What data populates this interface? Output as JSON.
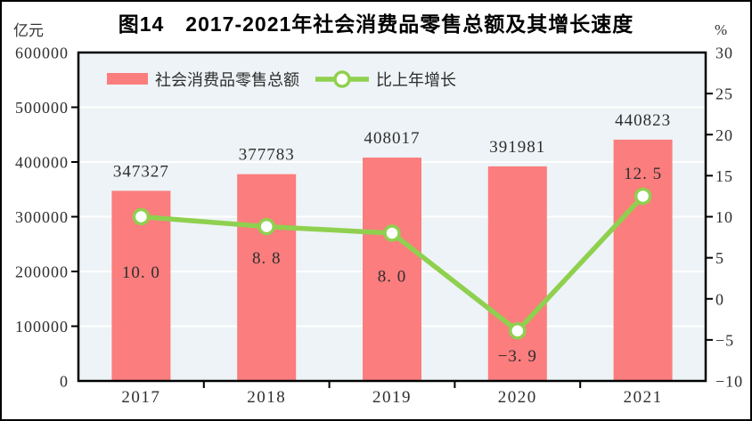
{
  "figure": {
    "title": "图14　2017-2021年社会消费品零售总额及其增长速度",
    "left_unit": "亿元",
    "right_unit": "%"
  },
  "chart_data": {
    "type": "bar",
    "title": "图14 2017-2021年社会消费品零售总额及其增长速度",
    "categories": [
      "2017",
      "2018",
      "2019",
      "2020",
      "2021"
    ],
    "series": [
      {
        "name": "社会消费品零售总额",
        "type": "bar",
        "axis": "left",
        "values": [
          347327,
          377783,
          408017,
          391981,
          440823
        ],
        "labels": [
          "347327",
          "377783",
          "408017",
          "391981",
          "440823"
        ],
        "color": "#FB7D7D"
      },
      {
        "name": "比上年增长",
        "type": "line",
        "axis": "right",
        "values": [
          10.0,
          8.8,
          8.0,
          -3.9,
          12.5
        ],
        "labels": [
          "10. 0",
          "8. 8",
          "8. 0",
          "−3. 9",
          "12. 5"
        ],
        "label_offsets": [
          62,
          35,
          48,
          28,
          -26
        ],
        "color": "#8FD04F",
        "marker": "circle",
        "marker_fill": "#FFFFFF"
      }
    ],
    "left_axis": {
      "unit": "亿元",
      "min": 0,
      "max": 600000,
      "step": 100000,
      "tick_labels": [
        "0",
        "100000",
        "200000",
        "300000",
        "400000",
        "500000",
        "600000"
      ]
    },
    "right_axis": {
      "unit": "%",
      "min": -10,
      "max": 30,
      "step": 5,
      "tick_labels": [
        "−10",
        "−5",
        "0",
        "5",
        "10",
        "15",
        "20",
        "25",
        "30"
      ]
    },
    "legend_position": "top-left-inside",
    "grid": "horizontal-white-at-left-axis-steps",
    "plot_bg": "#EDF3F6",
    "grid_color": "#FFFFFF"
  }
}
